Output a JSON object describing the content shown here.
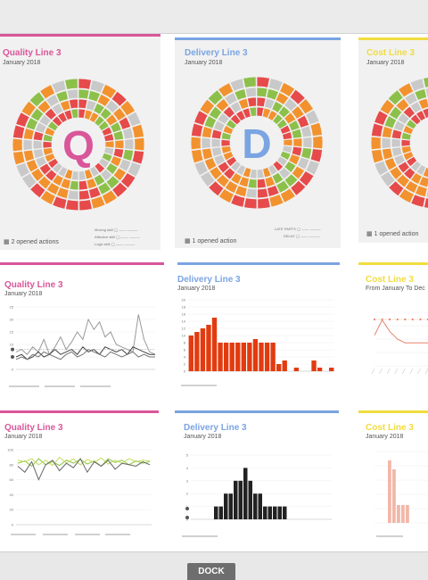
{
  "colors": {
    "quality": "#d9569a",
    "delivery": "#7aa4e2",
    "cost": "#f1dc3f"
  },
  "cards": {
    "quality_donut": {
      "title": "Quality Line 3",
      "date": "January 2018",
      "letter": "Q",
      "actions": "2 opened actions",
      "legend": [
        "Moving skill",
        "Affective skill",
        "Logic skill"
      ]
    },
    "delivery_donut": {
      "title": "Delivery Line 3",
      "date": "January 2018",
      "letter": "D",
      "actions": "1 opened action",
      "legend": [
        "LATE PARTS",
        "DELAY"
      ]
    },
    "cost_donut": {
      "title": "Cost Line 3",
      "date": "January 2018",
      "actions": "1 opened action"
    },
    "quality_line": {
      "title": "Quality Line 3",
      "date": "January 2018"
    },
    "delivery_bar": {
      "title": "Delivery Line 3",
      "date": "January 2018"
    },
    "cost_line": {
      "title": "Cost Line 3",
      "date": "January 2018",
      "subtitle": "From   January To Dec"
    },
    "quality_line2": {
      "title": "Quality Line 3",
      "date": "January 2018"
    },
    "delivery_bar2": {
      "title": "Delivery Line 3",
      "date": "January 2018"
    },
    "cost_bar": {
      "title": "Cost Line 3",
      "date": "January 2018"
    }
  },
  "dock": {
    "label": "DOCK"
  },
  "chart_data": [
    {
      "type": "line",
      "name": "quality_line",
      "ylim": [
        0,
        25
      ],
      "yticks": [
        "25",
        "20",
        "15",
        "10",
        "5",
        "0"
      ],
      "series": [
        {
          "color": "#999999",
          "values": [
            7,
            8,
            6,
            9,
            7,
            12,
            6,
            9,
            13,
            8,
            11,
            15,
            12,
            20,
            16,
            19,
            13,
            15,
            10,
            9,
            8,
            7,
            22,
            12,
            7,
            6
          ]
        },
        {
          "color": "#444444",
          "values": [
            5,
            6,
            4,
            5,
            7,
            5,
            6,
            8,
            6,
            7,
            8,
            6,
            9,
            7,
            8,
            6,
            9,
            8,
            7,
            8,
            6,
            9,
            8,
            7,
            6,
            6
          ]
        },
        {
          "color": "#777777",
          "values": [
            4,
            5,
            4,
            6,
            5,
            7,
            6,
            5,
            4,
            6,
            7,
            5,
            6,
            8,
            7,
            6,
            5,
            7,
            6,
            5,
            6,
            7,
            5,
            6,
            5,
            5
          ]
        }
      ]
    },
    {
      "type": "bar",
      "name": "delivery_bar",
      "color": "#e23b10",
      "ylim": [
        0,
        20
      ],
      "yticks": [
        "20",
        "18",
        "16",
        "14",
        "12",
        "10",
        "8",
        "6",
        "4",
        "2",
        "0"
      ],
      "values": [
        10,
        11,
        12,
        13,
        15,
        8,
        8,
        8,
        8,
        8,
        8,
        9,
        8,
        8,
        8,
        2,
        3,
        0,
        1,
        0,
        0,
        3,
        1,
        0,
        1
      ]
    },
    {
      "type": "line",
      "name": "cost_line",
      "color": "#e8826b",
      "values": [
        8,
        12,
        9,
        7,
        6,
        6,
        6,
        6
      ]
    },
    {
      "type": "line",
      "name": "quality_line2",
      "ylim": [
        0,
        100
      ],
      "yticks": [
        "100",
        "80",
        "60",
        "40",
        "20",
        "0"
      ],
      "series": [
        {
          "color": "#8cc63e",
          "values": [
            82,
            85,
            78,
            88,
            80,
            84,
            79,
            86,
            82,
            87,
            81,
            85,
            78,
            88,
            83,
            86,
            80,
            85,
            82,
            84
          ]
        },
        {
          "color": "#c4dc5a",
          "values": [
            86,
            84,
            88,
            80,
            86,
            79,
            90,
            82,
            88,
            80,
            87,
            83,
            89,
            81,
            86,
            82,
            88,
            84,
            86,
            85
          ]
        },
        {
          "color": "#666666",
          "values": [
            78,
            70,
            84,
            60,
            80,
            86,
            72,
            82,
            76,
            88,
            70,
            84,
            78,
            86,
            74,
            82,
            80,
            78,
            84,
            80
          ]
        }
      ]
    },
    {
      "type": "bar",
      "name": "delivery_bar2",
      "color": "#222222",
      "ylim": [
        0,
        5
      ],
      "yticks": [
        "5",
        "4",
        "3",
        "2",
        "1",
        "0"
      ],
      "values": [
        1,
        1,
        2,
        2,
        3,
        3,
        4,
        3,
        2,
        2,
        1,
        1,
        1,
        1,
        1
      ]
    },
    {
      "type": "bar",
      "name": "cost_bar",
      "color": "#f2b7a8",
      "values": [
        0,
        0,
        0,
        7,
        6,
        2,
        2,
        2,
        0,
        0,
        0,
        0
      ]
    }
  ]
}
